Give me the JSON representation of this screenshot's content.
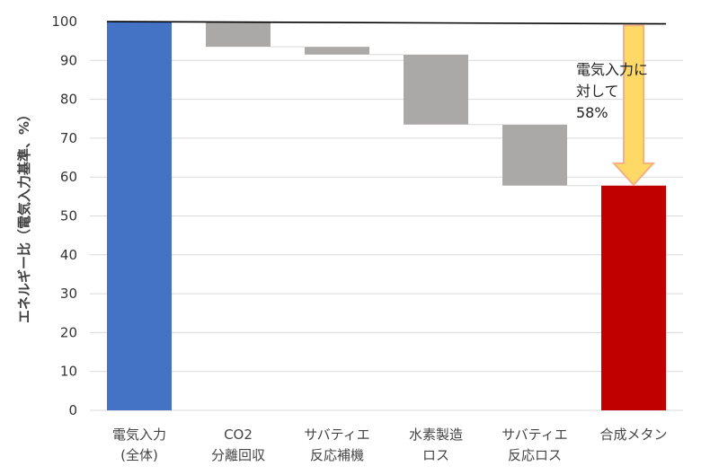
{
  "chart_data": {
    "type": "bar",
    "subtype": "waterfall",
    "ylabel": "エネルギー比（電気入力基準、%）",
    "ylim": [
      0,
      100
    ],
    "yticks": [
      0,
      10,
      20,
      30,
      40,
      50,
      60,
      70,
      80,
      90,
      100
    ],
    "grid": true,
    "categories": [
      [
        "電気入力",
        "(全体)"
      ],
      [
        "CO2",
        "分離回収"
      ],
      [
        "サバティエ",
        "反応補機"
      ],
      [
        "水素製造",
        "ロス"
      ],
      [
        "サバティエ",
        "反応ロス"
      ],
      [
        "合成メタン"
      ]
    ],
    "bars": [
      {
        "kind": "total",
        "start": 0,
        "end": 100,
        "color": "#4472C4"
      },
      {
        "kind": "loss",
        "start": 93.5,
        "end": 100,
        "color": "#ABA8A8"
      },
      {
        "kind": "loss",
        "start": 91.5,
        "end": 93.5,
        "color": "#ABA8A8"
      },
      {
        "kind": "loss",
        "start": 73.5,
        "end": 91.5,
        "color": "#ABA8A8"
      },
      {
        "kind": "loss",
        "start": 57.8,
        "end": 73.5,
        "color": "#ABA8A8"
      },
      {
        "kind": "total",
        "start": 0,
        "end": 57.8,
        "color": "#C00000"
      }
    ],
    "reference_line": 100,
    "annotation": {
      "lines": [
        "電気入力に",
        "対して",
        "58%"
      ],
      "arrow_from": 99,
      "arrow_to": 58,
      "arrow_fill": "#FFD966",
      "arrow_stroke": "#F4B183"
    }
  }
}
